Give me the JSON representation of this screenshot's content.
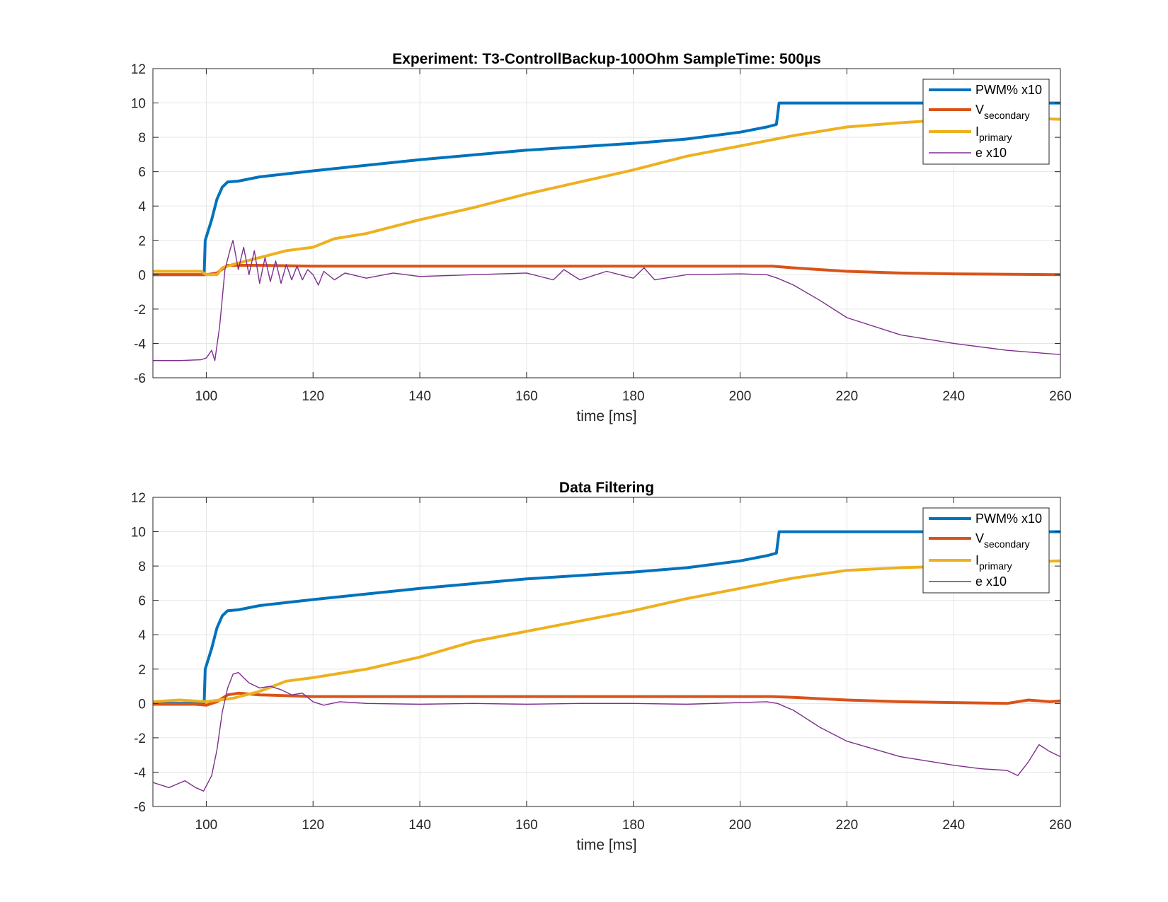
{
  "chart_data": [
    {
      "type": "line",
      "title": "Experiment: T3-ControllBackup-100Ohm   SampleTime: 500µs",
      "xlabel": "time [ms]",
      "ylabel": "",
      "xlim": [
        90,
        260
      ],
      "ylim": [
        -6,
        12
      ],
      "xticks": [
        100,
        120,
        140,
        160,
        180,
        200,
        220,
        240,
        260
      ],
      "yticks": [
        -6,
        -4,
        -2,
        0,
        2,
        4,
        6,
        8,
        10,
        12
      ],
      "grid": true,
      "legend_position": "top-right",
      "series": [
        {
          "name": "PWM% x10",
          "legend_main": "PWM% x10",
          "legend_sub": "",
          "color": "#0072BD",
          "width": 4,
          "points": [
            [
              90,
              0
            ],
            [
              99.6,
              0
            ],
            [
              99.8,
              2
            ],
            [
              101,
              3.2
            ],
            [
              102,
              4.4
            ],
            [
              103,
              5.1
            ],
            [
              104,
              5.4
            ],
            [
              106,
              5.45
            ],
            [
              110,
              5.7
            ],
            [
              120,
              6.05
            ],
            [
              140,
              6.7
            ],
            [
              160,
              7.25
            ],
            [
              180,
              7.65
            ],
            [
              190,
              7.9
            ],
            [
              200,
              8.3
            ],
            [
              205,
              8.6
            ],
            [
              206.8,
              8.75
            ],
            [
              207.3,
              10
            ],
            [
              260,
              10
            ]
          ]
        },
        {
          "name": "Vsecondary",
          "legend_main": "V",
          "legend_sub": "secondary",
          "color": "#D95319",
          "width": 4,
          "points": [
            [
              90,
              0
            ],
            [
              100,
              0
            ],
            [
              102,
              0.1
            ],
            [
              104,
              0.55
            ],
            [
              110,
              0.55
            ],
            [
              120,
              0.5
            ],
            [
              140,
              0.5
            ],
            [
              160,
              0.5
            ],
            [
              200,
              0.5
            ],
            [
              206,
              0.5
            ],
            [
              210,
              0.4
            ],
            [
              215,
              0.3
            ],
            [
              220,
              0.2
            ],
            [
              230,
              0.1
            ],
            [
              240,
              0.05
            ],
            [
              260,
              0
            ]
          ]
        },
        {
          "name": "Iprimary",
          "legend_main": "I",
          "legend_sub": "primary",
          "color": "#EDB120",
          "width": 4,
          "points": [
            [
              90,
              0.2
            ],
            [
              99,
              0.2
            ],
            [
              100,
              0
            ],
            [
              102,
              0
            ],
            [
              103,
              0.4
            ],
            [
              105,
              0.6
            ],
            [
              110,
              1.0
            ],
            [
              115,
              1.4
            ],
            [
              120,
              1.6
            ],
            [
              124,
              2.1
            ],
            [
              130,
              2.4
            ],
            [
              140,
              3.2
            ],
            [
              150,
              3.9
            ],
            [
              160,
              4.7
            ],
            [
              170,
              5.4
            ],
            [
              180,
              6.1
            ],
            [
              190,
              6.9
            ],
            [
              200,
              7.5
            ],
            [
              210,
              8.1
            ],
            [
              220,
              8.6
            ],
            [
              230,
              8.85
            ],
            [
              240,
              9.05
            ],
            [
              250,
              9.15
            ],
            [
              260,
              9.05
            ]
          ]
        },
        {
          "name": "e x10",
          "legend_main": "e x10",
          "legend_sub": "",
          "color": "#7E2F8E",
          "width": 1.4,
          "points": [
            [
              90,
              -5
            ],
            [
              95,
              -5
            ],
            [
              99,
              -4.95
            ],
            [
              100,
              -4.85
            ],
            [
              101,
              -4.4
            ],
            [
              101.6,
              -5
            ],
            [
              102.5,
              -3
            ],
            [
              103.5,
              0.3
            ],
            [
              104.5,
              1.5
            ],
            [
              105,
              2
            ],
            [
              106,
              0.3
            ],
            [
              107,
              1.6
            ],
            [
              108,
              0
            ],
            [
              109,
              1.4
            ],
            [
              110,
              -0.5
            ],
            [
              111,
              1.0
            ],
            [
              112,
              -0.4
            ],
            [
              113,
              0.8
            ],
            [
              114,
              -0.5
            ],
            [
              115,
              0.6
            ],
            [
              116,
              -0.3
            ],
            [
              117,
              0.5
            ],
            [
              118,
              -0.3
            ],
            [
              119,
              0.3
            ],
            [
              120,
              0
            ],
            [
              121,
              -0.6
            ],
            [
              122,
              0.2
            ],
            [
              124,
              -0.3
            ],
            [
              126,
              0.1
            ],
            [
              130,
              -0.2
            ],
            [
              135,
              0.1
            ],
            [
              140,
              -0.1
            ],
            [
              150,
              0
            ],
            [
              160,
              0.1
            ],
            [
              165,
              -0.3
            ],
            [
              167,
              0.3
            ],
            [
              170,
              -0.3
            ],
            [
              175,
              0.2
            ],
            [
              180,
              -0.2
            ],
            [
              182,
              0.4
            ],
            [
              184,
              -0.3
            ],
            [
              190,
              0
            ],
            [
              200,
              0.05
            ],
            [
              205,
              0
            ],
            [
              207,
              -0.2
            ],
            [
              210,
              -0.6
            ],
            [
              215,
              -1.5
            ],
            [
              220,
              -2.5
            ],
            [
              230,
              -3.5
            ],
            [
              240,
              -4
            ],
            [
              250,
              -4.4
            ],
            [
              260,
              -4.65
            ]
          ]
        }
      ]
    },
    {
      "type": "line",
      "title": "Data Filtering",
      "xlabel": "time [ms]",
      "ylabel": "",
      "xlim": [
        90,
        260
      ],
      "ylim": [
        -6,
        12
      ],
      "xticks": [
        100,
        120,
        140,
        160,
        180,
        200,
        220,
        240,
        260
      ],
      "yticks": [
        -6,
        -4,
        -2,
        0,
        2,
        4,
        6,
        8,
        10,
        12
      ],
      "grid": true,
      "legend_position": "top-right",
      "series": [
        {
          "name": "PWM% x10",
          "legend_main": "PWM% x10",
          "legend_sub": "",
          "color": "#0072BD",
          "width": 4,
          "points": [
            [
              90,
              0
            ],
            [
              99.6,
              0
            ],
            [
              99.8,
              2
            ],
            [
              101,
              3.2
            ],
            [
              102,
              4.4
            ],
            [
              103,
              5.1
            ],
            [
              104,
              5.4
            ],
            [
              106,
              5.45
            ],
            [
              110,
              5.7
            ],
            [
              120,
              6.05
            ],
            [
              140,
              6.7
            ],
            [
              160,
              7.25
            ],
            [
              180,
              7.65
            ],
            [
              190,
              7.9
            ],
            [
              200,
              8.3
            ],
            [
              205,
              8.6
            ],
            [
              206.8,
              8.75
            ],
            [
              207.3,
              10
            ],
            [
              260,
              10
            ]
          ]
        },
        {
          "name": "Vsecondary",
          "legend_main": "V",
          "legend_sub": "secondary",
          "color": "#D95319",
          "width": 4,
          "points": [
            [
              90,
              -0.05
            ],
            [
              98,
              -0.05
            ],
            [
              100,
              -0.1
            ],
            [
              102,
              0.1
            ],
            [
              104,
              0.5
            ],
            [
              106,
              0.6
            ],
            [
              110,
              0.5
            ],
            [
              115,
              0.45
            ],
            [
              120,
              0.4
            ],
            [
              140,
              0.4
            ],
            [
              160,
              0.4
            ],
            [
              200,
              0.4
            ],
            [
              206,
              0.4
            ],
            [
              210,
              0.35
            ],
            [
              220,
              0.2
            ],
            [
              230,
              0.1
            ],
            [
              240,
              0.05
            ],
            [
              250,
              0
            ],
            [
              254,
              0.2
            ],
            [
              258,
              0.1
            ],
            [
              260,
              0.15
            ]
          ]
        },
        {
          "name": "Iprimary",
          "legend_main": "I",
          "legend_sub": "primary",
          "color": "#EDB120",
          "width": 4,
          "points": [
            [
              90,
              0.1
            ],
            [
              95,
              0.2
            ],
            [
              100,
              0.1
            ],
            [
              105,
              0.3
            ],
            [
              110,
              0.7
            ],
            [
              115,
              1.3
            ],
            [
              120,
              1.5
            ],
            [
              130,
              2.0
            ],
            [
              140,
              2.7
            ],
            [
              150,
              3.6
            ],
            [
              160,
              4.2
            ],
            [
              170,
              4.8
            ],
            [
              180,
              5.4
            ],
            [
              190,
              6.1
            ],
            [
              200,
              6.7
            ],
            [
              210,
              7.3
            ],
            [
              220,
              7.75
            ],
            [
              230,
              7.9
            ],
            [
              240,
              8.0
            ],
            [
              250,
              8.2
            ],
            [
              260,
              8.3
            ]
          ]
        },
        {
          "name": "e x10",
          "legend_main": "e x10",
          "legend_sub": "",
          "color": "#7E2F8E",
          "width": 1.4,
          "points": [
            [
              90,
              -4.6
            ],
            [
              93,
              -4.9
            ],
            [
              96,
              -4.5
            ],
            [
              98,
              -4.9
            ],
            [
              99.5,
              -5.1
            ],
            [
              101,
              -4.2
            ],
            [
              102,
              -2.7
            ],
            [
              103,
              -0.5
            ],
            [
              104,
              0.9
            ],
            [
              105,
              1.7
            ],
            [
              106,
              1.8
            ],
            [
              108,
              1.2
            ],
            [
              110,
              0.9
            ],
            [
              112,
              1.0
            ],
            [
              114,
              0.8
            ],
            [
              116,
              0.5
            ],
            [
              118,
              0.6
            ],
            [
              120,
              0.1
            ],
            [
              122,
              -0.1
            ],
            [
              125,
              0.1
            ],
            [
              130,
              0
            ],
            [
              140,
              -0.05
            ],
            [
              150,
              0
            ],
            [
              160,
              -0.05
            ],
            [
              170,
              0
            ],
            [
              180,
              0
            ],
            [
              190,
              -0.05
            ],
            [
              200,
              0.05
            ],
            [
              205,
              0.1
            ],
            [
              207,
              0
            ],
            [
              210,
              -0.4
            ],
            [
              215,
              -1.4
            ],
            [
              220,
              -2.2
            ],
            [
              230,
              -3.1
            ],
            [
              240,
              -3.6
            ],
            [
              245,
              -3.8
            ],
            [
              250,
              -3.9
            ],
            [
              252,
              -4.2
            ],
            [
              254,
              -3.4
            ],
            [
              256,
              -2.4
            ],
            [
              258,
              -2.8
            ],
            [
              260,
              -3.1
            ]
          ]
        }
      ]
    }
  ]
}
